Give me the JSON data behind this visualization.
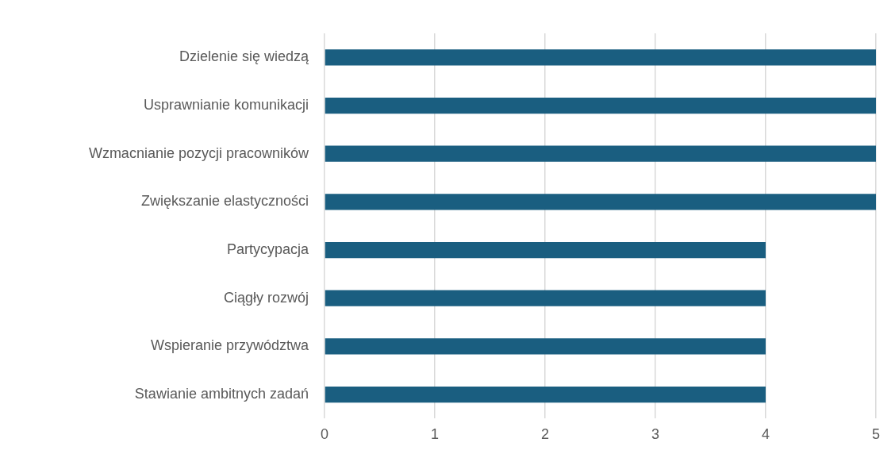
{
  "chart_data": {
    "type": "bar",
    "orientation": "horizontal",
    "categories": [
      "Dzielenie się wiedzą",
      "Usprawnianie komunikacji",
      "Wzmacnianie pozycji pracowników",
      "Zwiększanie elastyczności",
      "Partycypacja",
      "Ciągły rozwój",
      "Wspieranie przywództwa",
      "Stawianie ambitnych zadań"
    ],
    "values": [
      5,
      5,
      5,
      5,
      4,
      4,
      4,
      4
    ],
    "color": "#1a5e80",
    "xlim": [
      0,
      5
    ],
    "xticks": [
      0,
      1,
      2,
      3,
      4,
      5
    ],
    "grid": "x",
    "legend": false
  }
}
